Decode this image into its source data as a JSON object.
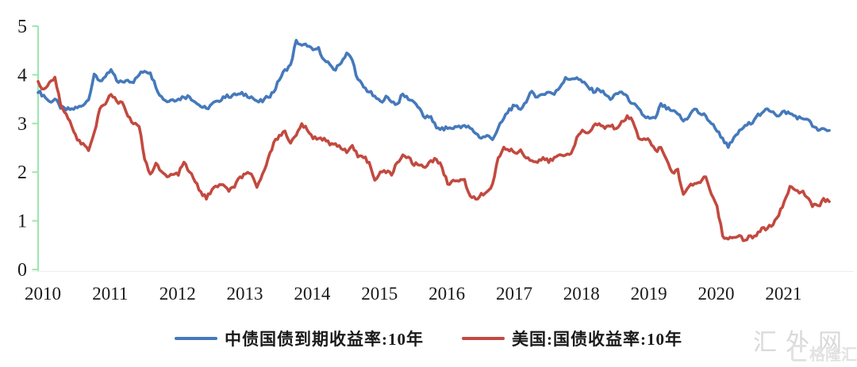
{
  "watermark": {
    "site": "汇外网",
    "logo_text": "格隆汇"
  },
  "chart_data": {
    "type": "line",
    "x_interval": "monthly",
    "x_start": "2010-01",
    "x_end": "2021-10",
    "x_ticks": [
      "2010",
      "2011",
      "2012",
      "2013",
      "2014",
      "2015",
      "2016",
      "2017",
      "2018",
      "2019",
      "2020",
      "2021"
    ],
    "y_ticks": [
      "0",
      "1",
      "2",
      "3",
      "4",
      "5"
    ],
    "ylim": [
      0,
      5
    ],
    "grid": false,
    "legend_position": "bottom",
    "axis_color": "#9fe6ae",
    "baseline_color": "#ededed",
    "tick_label_color": "#1a1a1a",
    "series": [
      {
        "name": "中债国债到期收益率:10年",
        "color": "#4579bb",
        "values": [
          3.65,
          3.58,
          3.45,
          3.5,
          3.32,
          3.28,
          3.3,
          3.32,
          3.38,
          3.5,
          4.0,
          3.88,
          3.95,
          4.1,
          3.88,
          3.85,
          3.9,
          3.85,
          4.0,
          4.08,
          4.05,
          3.75,
          3.55,
          3.45,
          3.5,
          3.5,
          3.55,
          3.55,
          3.45,
          3.35,
          3.3,
          3.4,
          3.45,
          3.55,
          3.55,
          3.6,
          3.6,
          3.6,
          3.55,
          3.45,
          3.45,
          3.55,
          3.65,
          3.9,
          4.1,
          4.2,
          4.7,
          4.6,
          4.6,
          4.5,
          4.55,
          4.3,
          4.2,
          4.1,
          4.25,
          4.45,
          4.3,
          3.9,
          3.75,
          3.65,
          3.55,
          3.45,
          3.55,
          3.45,
          3.4,
          3.6,
          3.5,
          3.45,
          3.3,
          3.1,
          3.15,
          2.9,
          2.9,
          2.9,
          2.9,
          2.95,
          2.95,
          2.9,
          2.8,
          2.7,
          2.75,
          2.68,
          2.9,
          3.1,
          3.3,
          3.35,
          3.3,
          3.45,
          3.65,
          3.55,
          3.6,
          3.65,
          3.6,
          3.75,
          3.95,
          3.9,
          3.95,
          3.85,
          3.75,
          3.65,
          3.7,
          3.6,
          3.5,
          3.6,
          3.65,
          3.55,
          3.4,
          3.3,
          3.15,
          3.1,
          3.1,
          3.4,
          3.3,
          3.25,
          3.2,
          3.05,
          3.15,
          3.3,
          3.2,
          3.15,
          3.0,
          2.85,
          2.7,
          2.5,
          2.7,
          2.85,
          2.95,
          3.0,
          3.15,
          3.2,
          3.3,
          3.25,
          3.15,
          3.25,
          3.2,
          3.15,
          3.1,
          3.1,
          2.95,
          2.85,
          2.9,
          2.85
        ]
      },
      {
        "name": "美国:国债收益率:10年",
        "color": "#c2493f",
        "values": [
          3.85,
          3.7,
          3.85,
          3.95,
          3.4,
          3.2,
          2.95,
          2.65,
          2.6,
          2.45,
          2.8,
          3.3,
          3.4,
          3.6,
          3.45,
          3.45,
          3.15,
          3.0,
          2.95,
          2.25,
          1.95,
          2.2,
          2.0,
          1.9,
          1.95,
          1.95,
          2.2,
          2.0,
          1.8,
          1.6,
          1.45,
          1.65,
          1.7,
          1.75,
          1.6,
          1.7,
          1.9,
          1.95,
          1.95,
          1.7,
          1.95,
          2.3,
          2.6,
          2.75,
          2.85,
          2.6,
          2.75,
          3.0,
          2.85,
          2.7,
          2.7,
          2.7,
          2.55,
          2.6,
          2.5,
          2.4,
          2.55,
          2.3,
          2.3,
          2.2,
          1.85,
          2.0,
          2.0,
          1.95,
          2.2,
          2.35,
          2.3,
          2.15,
          2.15,
          2.1,
          2.25,
          2.25,
          2.1,
          1.75,
          1.85,
          1.8,
          1.85,
          1.5,
          1.45,
          1.55,
          1.6,
          1.75,
          2.3,
          2.5,
          2.45,
          2.4,
          2.45,
          2.3,
          2.25,
          2.2,
          2.3,
          2.2,
          2.3,
          2.35,
          2.35,
          2.4,
          2.7,
          2.85,
          2.8,
          2.95,
          3.0,
          2.9,
          2.95,
          2.9,
          3.05,
          3.15,
          3.05,
          2.7,
          2.7,
          2.65,
          2.45,
          2.5,
          2.25,
          2.0,
          2.05,
          1.55,
          1.7,
          1.75,
          1.8,
          1.9,
          1.55,
          1.3,
          0.7,
          0.62,
          0.65,
          0.7,
          0.6,
          0.68,
          0.68,
          0.85,
          0.85,
          0.92,
          1.1,
          1.4,
          1.7,
          1.62,
          1.6,
          1.5,
          1.3,
          1.3,
          1.45,
          1.4
        ]
      }
    ]
  }
}
